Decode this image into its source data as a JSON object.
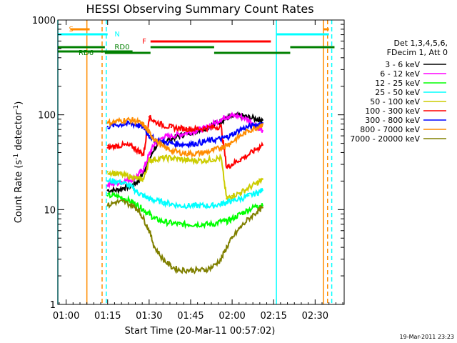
{
  "chart_data": {
    "type": "line",
    "title": "HESSI Observing Summary Count Rates",
    "xlabel": "Start Time (20-Mar-11 00:57:02)",
    "ylabel_prefix": "Count Rate (s",
    "ylabel_sup": "-1",
    "ylabel_mid": " detector",
    "ylabel_sup2": "-1",
    "ylabel_suffix": ")",
    "y_scale": "log",
    "ylim": [
      1,
      1000
    ],
    "xlim_minutes": [
      57.0,
      160.5
    ],
    "x_ticks": [
      {
        "minute": 60,
        "label": "01:00"
      },
      {
        "minute": 75,
        "label": "01:15"
      },
      {
        "minute": 90,
        "label": "01:30"
      },
      {
        "minute": 105,
        "label": "01:45"
      },
      {
        "minute": 120,
        "label": "02:00"
      },
      {
        "minute": 135,
        "label": "02:15"
      },
      {
        "minute": 150,
        "label": "02:30"
      }
    ],
    "y_ticks": [
      {
        "value": 1,
        "label": "1"
      },
      {
        "value": 10,
        "label": "10"
      },
      {
        "value": 100,
        "label": "100"
      },
      {
        "value": 1000,
        "label": "1000"
      }
    ],
    "legend_header": [
      "Det 1,3,4,5,6,",
      "FDecim 1, Att 0"
    ],
    "series": [
      {
        "name": "3 - 6 keV",
        "color": "#000000",
        "x": [
          75,
          78,
          81,
          84,
          86,
          88,
          90,
          92,
          95,
          98,
          101,
          104,
          107,
          110,
          113,
          116,
          118,
          120,
          123,
          126,
          129,
          131
        ],
        "y": [
          16,
          16,
          17,
          18,
          20,
          25,
          33,
          45,
          52,
          56,
          60,
          64,
          68,
          72,
          78,
          86,
          92,
          96,
          98,
          94,
          90,
          88
        ]
      },
      {
        "name": "6 - 12 keV",
        "color": "#ff00ff",
        "x": [
          75,
          78,
          81,
          84,
          86,
          88,
          90,
          92,
          95,
          98,
          101,
          104,
          107,
          110,
          113,
          116,
          118,
          120,
          123,
          126,
          129,
          131
        ],
        "y": [
          18,
          19,
          20,
          21,
          23,
          27,
          38,
          50,
          58,
          60,
          62,
          65,
          68,
          72,
          80,
          90,
          96,
          98,
          96,
          88,
          76,
          68
        ]
      },
      {
        "name": "12 - 25 keV",
        "color": "#00ff00",
        "x": [
          75,
          78,
          81,
          84,
          86,
          88,
          90,
          92,
          95,
          98,
          101,
          104,
          107,
          110,
          113,
          116,
          118,
          120,
          123,
          126,
          129,
          131
        ],
        "y": [
          14,
          14,
          13,
          12,
          11,
          10,
          9,
          8,
          7.5,
          7.2,
          7,
          7,
          7,
          7,
          7,
          7.5,
          7.5,
          8,
          9,
          10,
          11,
          11
        ]
      },
      {
        "name": "25 - 50 keV",
        "color": "#00ffff",
        "x": [
          75,
          78,
          81,
          84,
          86,
          88,
          90,
          92,
          95,
          98,
          101,
          104,
          107,
          110,
          113,
          116,
          118,
          120,
          123,
          126,
          129,
          131
        ],
        "y": [
          20,
          20,
          19,
          17,
          15,
          14,
          13,
          12.5,
          12,
          11.5,
          11,
          11,
          11,
          11,
          11,
          11.5,
          12,
          12.5,
          13,
          14,
          15,
          16
        ]
      },
      {
        "name": "50 - 100 keV",
        "color": "#cccc00",
        "x": [
          75,
          78,
          81,
          84,
          86,
          88,
          90,
          92,
          95,
          98,
          101,
          104,
          107,
          110,
          113,
          116,
          118,
          120,
          123,
          126,
          129,
          131
        ],
        "y": [
          25,
          24,
          23,
          22,
          21,
          21,
          33,
          34,
          35,
          35,
          34,
          33,
          33,
          33,
          34,
          35,
          13,
          14,
          15,
          17,
          19,
          21
        ]
      },
      {
        "name": "100 - 300 keV",
        "color": "#ff0000",
        "x": [
          75,
          78,
          81,
          84,
          86,
          88,
          90,
          92,
          95,
          98,
          101,
          104,
          107,
          110,
          113,
          116,
          118,
          120,
          123,
          126,
          129,
          131
        ],
        "y": [
          45,
          47,
          48,
          46,
          42,
          38,
          95,
          85,
          78,
          74,
          72,
          71,
          71,
          72,
          74,
          75,
          28,
          30,
          34,
          38,
          44,
          48
        ]
      },
      {
        "name": "300 - 800 keV",
        "color": "#0000ff",
        "x": [
          75,
          78,
          81,
          84,
          86,
          88,
          90,
          92,
          95,
          98,
          101,
          104,
          107,
          110,
          113,
          116,
          118,
          120,
          123,
          126,
          129,
          131
        ],
        "y": [
          75,
          78,
          80,
          80,
          78,
          74,
          60,
          55,
          52,
          50,
          49,
          49,
          50,
          52,
          54,
          56,
          58,
          62,
          70,
          75,
          78,
          82
        ]
      },
      {
        "name": "800 - 7000 keV",
        "color": "#ff8c00",
        "x": [
          75,
          78,
          81,
          84,
          86,
          88,
          90,
          92,
          95,
          98,
          101,
          104,
          107,
          110,
          113,
          116,
          118,
          120,
          123,
          126,
          129,
          131
        ],
        "y": [
          82,
          85,
          88,
          88,
          84,
          78,
          65,
          55,
          46,
          42,
          40,
          39,
          39,
          40,
          42,
          45,
          48,
          52,
          60,
          68,
          74,
          80
        ]
      },
      {
        "name": "7000 - 20000 keV",
        "color": "#808000",
        "x": [
          75,
          78,
          81,
          84,
          86,
          88,
          90,
          92,
          95,
          98,
          101,
          104,
          107,
          110,
          113,
          116,
          118,
          120,
          123,
          126,
          129,
          131
        ],
        "y": [
          11,
          12,
          12,
          11,
          10,
          8,
          6,
          4,
          3,
          2.5,
          2.3,
          2.3,
          2.3,
          2.3,
          2.5,
          3,
          4,
          5,
          6.5,
          8,
          9.5,
          10.5
        ]
      }
    ],
    "flags": {
      "saa_label": "S",
      "night_label": "N",
      "flare_label": "F",
      "rd0_label": "RD0",
      "rd6_label": "RD6",
      "saa_segments": [
        [
          61.5,
          68.5
        ],
        [
          153.0,
          155.0
        ]
      ],
      "night_segments": [
        [
          57.0,
          75.0
        ],
        [
          136.0,
          155.0
        ]
      ],
      "flare_segments": [
        [
          90.5,
          134.0
        ]
      ],
      "rd0_segments": [
        [
          57.0,
          74.0
        ],
        [
          74.0,
          90.5
        ],
        [
          90.5,
          113.5
        ],
        [
          113.5,
          141.0
        ],
        [
          141.0,
          157.0
        ]
      ],
      "rd6_segments": [
        [
          57.0,
          84.0
        ]
      ],
      "solid_vlines": [
        {
          "minute": 57.0,
          "color": "#00ffff"
        },
        {
          "minute": 67.5,
          "color": "#ff8c00"
        },
        {
          "minute": 136.0,
          "color": "#00ffff"
        },
        {
          "minute": 153.0,
          "color": "#ff8c00"
        }
      ],
      "dashed_vlines": [
        {
          "minute": 73.0,
          "color": "#ff8c00"
        },
        {
          "minute": 74.5,
          "color": "#00ffff"
        },
        {
          "minute": 154.5,
          "color": "#ff8c00"
        },
        {
          "minute": 156.0,
          "color": "#00ffff"
        }
      ]
    },
    "timestamp": "19-Mar-2011 23:23"
  }
}
